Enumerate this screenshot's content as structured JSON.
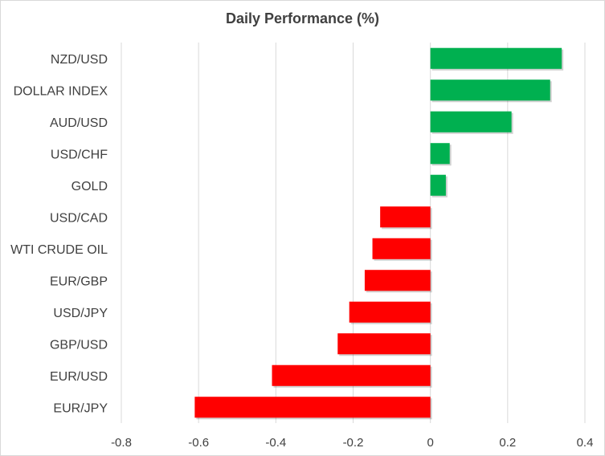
{
  "chart_data": {
    "type": "bar",
    "orientation": "horizontal",
    "title": "Daily Performance (%)",
    "xlabel": "",
    "ylabel": "",
    "xlim": [
      -0.8,
      0.4
    ],
    "ticks": [
      -0.8,
      -0.6,
      -0.4,
      -0.2,
      0,
      0.2,
      0.4
    ],
    "tick_labels": [
      "-0.8",
      "-0.6",
      "-0.4",
      "-0.2",
      "0",
      "0.2",
      "0.4"
    ],
    "grid": "vertical",
    "legend": "none",
    "categories": [
      "NZD/USD",
      "DOLLAR INDEX",
      "AUD/USD",
      "USD/CHF",
      "GOLD",
      "USD/CAD",
      "WTI CRUDE OIL",
      "EUR/GBP",
      "USD/JPY",
      "GBP/USD",
      "EUR/USD",
      "EUR/JPY"
    ],
    "values": [
      0.34,
      0.31,
      0.21,
      0.05,
      0.04,
      -0.13,
      -0.15,
      -0.17,
      -0.21,
      -0.24,
      -0.41,
      -0.61
    ],
    "colors": {
      "positive": "#00b050",
      "negative": "#ff0000",
      "grid": "#d9d9d9",
      "text": "#404040"
    }
  }
}
